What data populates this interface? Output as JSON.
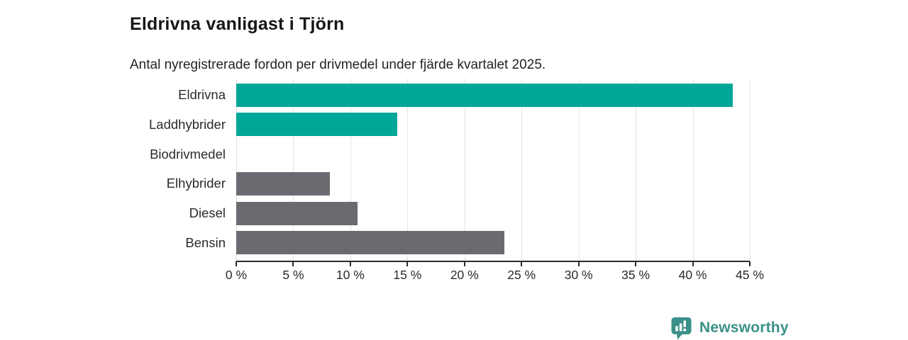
{
  "title": "Eldrivna vanligast i Tjörn",
  "subtitle": "Antal nyregistrerade fordon per drivmedel under fjärde kvartalet 2025.",
  "chart_data": {
    "type": "bar",
    "orientation": "horizontal",
    "title": "Eldrivna vanligast i Tjörn",
    "subtitle": "Antal nyregistrerade fordon per drivmedel under fjärde kvartalet 2025.",
    "categories": [
      "Eldrivna",
      "Laddhybrider",
      "Biodrivmedel",
      "Elhybrider",
      "Diesel",
      "Bensin"
    ],
    "values": [
      43.5,
      14.1,
      0,
      8.2,
      10.6,
      23.5
    ],
    "unit": "%",
    "xlabel": "",
    "ylabel": "",
    "xlim": [
      0,
      45
    ],
    "tick_interval": 5,
    "x_tick_labels": [
      "0 %",
      "5 %",
      "10 %",
      "15 %",
      "20 %",
      "25 %",
      "30 %",
      "35 %",
      "40 %",
      "45 %"
    ],
    "grid": true,
    "legend": false,
    "bar_colors": [
      "#00a698",
      "#00a698",
      "#6b6a70",
      "#6b6a70",
      "#6b6a70",
      "#6b6a70"
    ]
  },
  "colors": {
    "accent_teal": "#00a698",
    "neutral_gray": "#6b6a70",
    "brand_teal": "#3b9089",
    "grid_line": "#e4e4e4",
    "axis_line": "#2b2b2b"
  },
  "footer": {
    "brand": "Newsworthy"
  }
}
